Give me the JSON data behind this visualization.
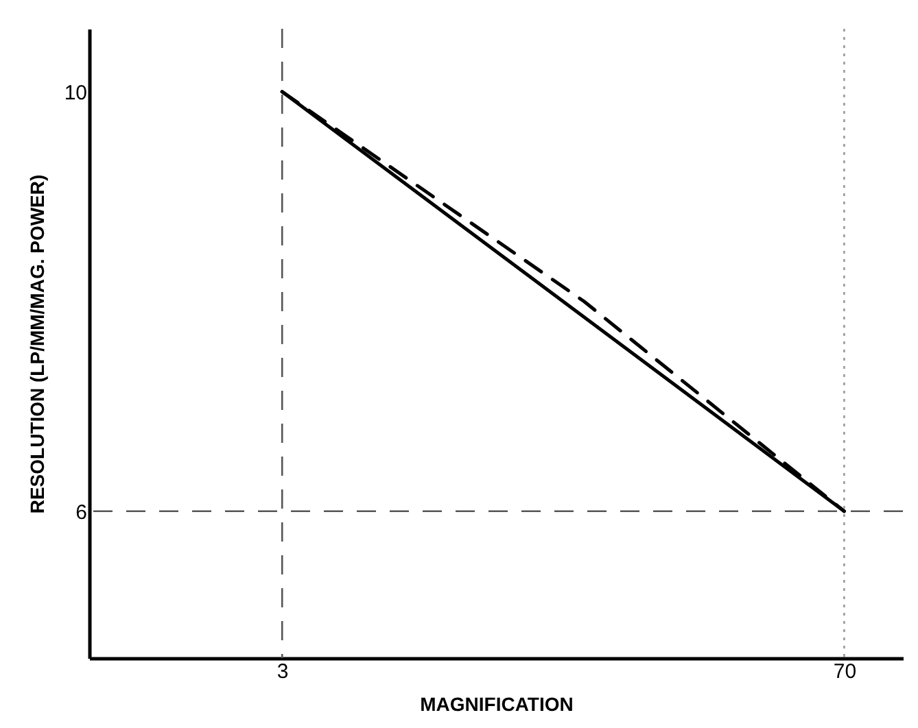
{
  "chart_data": {
    "type": "line",
    "xlabel": "MAGNIFICATION",
    "ylabel": "RESOLUTION (LP/MM/MAG. POWER)",
    "xlim": [
      -20,
      77
    ],
    "xticks": [
      3,
      70
    ],
    "ylim": [
      4.6,
      10.6
    ],
    "yticks": [
      6,
      10
    ],
    "grid": false,
    "marker": "none",
    "series": [
      {
        "color": "#000000",
        "x": [
          3,
          70
        ],
        "values": [
          10,
          6
        ],
        "line_style": "solid"
      },
      {
        "color": "#000000",
        "x": [
          3,
          39,
          70
        ],
        "values": [
          10,
          8.0,
          6
        ],
        "line_style": "dashed"
      }
    ],
    "ref_lines": [
      {
        "axis": "x",
        "value": 3,
        "line_style": "dashed",
        "color": "#555555"
      },
      {
        "axis": "x",
        "value": 70,
        "line_style": "dotted",
        "color": "#999999"
      },
      {
        "axis": "y",
        "value": 6,
        "line_style": "dashed",
        "color": "#555555"
      }
    ]
  }
}
